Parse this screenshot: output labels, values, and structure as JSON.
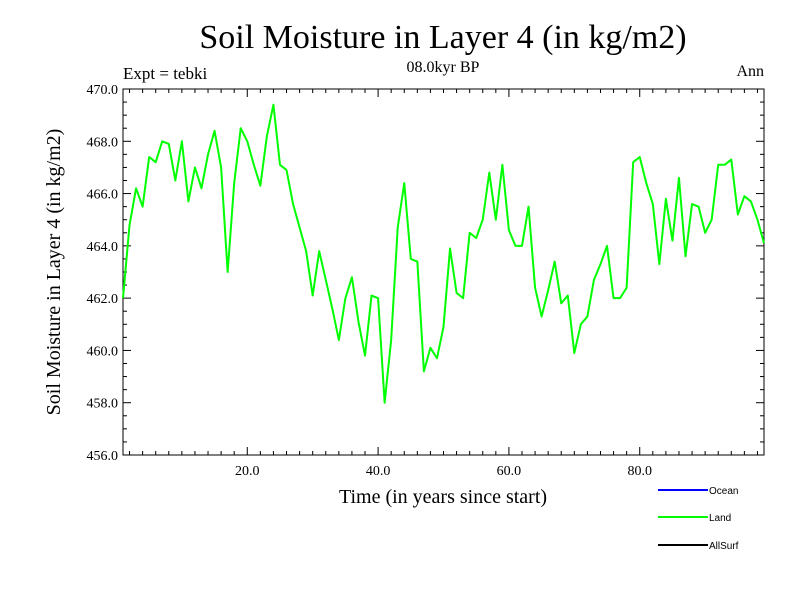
{
  "chart_data": {
    "type": "line",
    "title": "Soil Moisture in Layer 4 (in kg/m2)",
    "subtitle": "08.0kyr BP",
    "experiment_label": "Expt = tebki",
    "period_label": "Ann",
    "xlabel": "Time (in years since start)",
    "ylabel": "Soil Moisture in Layer 4 (in kg/m2)",
    "xlim": [
      1,
      99
    ],
    "ylim": [
      456.0,
      470.0
    ],
    "x_ticks": [
      20,
      40,
      60,
      80
    ],
    "x_tick_labels": [
      "20.0",
      "40.0",
      "60.0",
      "80.0"
    ],
    "y_ticks": [
      456,
      458,
      460,
      462,
      464,
      466,
      468,
      470
    ],
    "y_tick_labels": [
      "456.0",
      "458.0",
      "460.0",
      "462.0",
      "464.0",
      "466.0",
      "468.0",
      "470.0"
    ],
    "legend": [
      {
        "name": "Ocean",
        "color": "#0000ff"
      },
      {
        "name": "Land",
        "color": "#00ff00"
      },
      {
        "name": "AllSurf",
        "color": "#000000"
      }
    ],
    "legend_position": "bottom-right",
    "series": [
      {
        "name": "Land",
        "color": "#00ff00",
        "x": [
          1,
          2,
          3,
          4,
          5,
          6,
          7,
          8,
          9,
          10,
          11,
          12,
          13,
          14,
          15,
          16,
          17,
          18,
          19,
          20,
          21,
          22,
          23,
          24,
          25,
          26,
          27,
          28,
          29,
          30,
          31,
          32,
          33,
          34,
          35,
          36,
          37,
          38,
          39,
          40,
          41,
          42,
          43,
          44,
          45,
          46,
          47,
          48,
          49,
          50,
          51,
          52,
          53,
          54,
          55,
          56,
          57,
          58,
          59,
          60,
          61,
          62,
          63,
          64,
          65,
          66,
          67,
          68,
          69,
          70,
          71,
          72,
          73,
          74,
          75,
          76,
          77,
          78,
          79,
          80,
          81,
          82,
          83,
          84,
          85,
          86,
          87,
          88,
          89,
          90,
          91,
          92,
          93,
          94,
          95,
          96,
          97,
          98,
          99
        ],
        "values": [
          462.0,
          464.8,
          466.2,
          465.5,
          467.4,
          467.2,
          468.0,
          467.9,
          466.5,
          468.0,
          465.7,
          467.0,
          466.2,
          467.5,
          468.4,
          467.0,
          463.0,
          466.4,
          468.5,
          468.0,
          467.1,
          466.3,
          468.2,
          469.4,
          467.1,
          466.9,
          465.6,
          464.7,
          463.8,
          462.1,
          463.8,
          462.7,
          461.6,
          460.4,
          462.0,
          462.8,
          461.1,
          459.8,
          462.1,
          462.0,
          458.0,
          460.4,
          464.7,
          466.4,
          463.5,
          463.4,
          459.2,
          460.1,
          459.7,
          460.9,
          463.9,
          462.2,
          462.0,
          464.5,
          464.3,
          465.0,
          466.8,
          465.0,
          467.1,
          464.6,
          464.0,
          464.0,
          465.5,
          462.4,
          461.3,
          462.3,
          463.4,
          461.8,
          462.1,
          459.9,
          461.0,
          461.3,
          462.7,
          463.3,
          464.0,
          462.0,
          462.0,
          462.4,
          467.2,
          467.4,
          466.4,
          465.6,
          463.3,
          465.8,
          464.2,
          466.6,
          463.6,
          465.6,
          465.5,
          464.5,
          465.0,
          467.1,
          467.1,
          467.3,
          465.2,
          465.9,
          465.7,
          465.0,
          464.1
        ]
      }
    ]
  }
}
